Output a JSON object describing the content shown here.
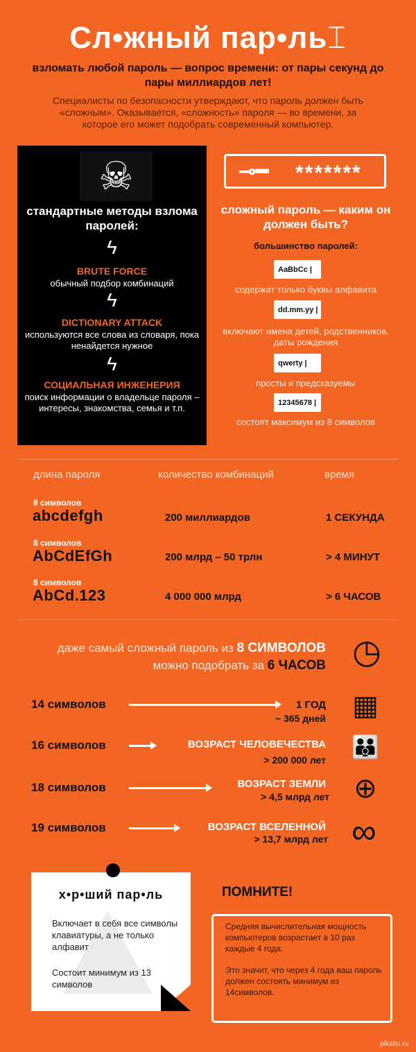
{
  "header": {
    "title": "Сл•жный пар•ль",
    "cursor_icon": "text-cursor-icon",
    "subtitle": "взломать любой пароль — вопрос времени: от пары секунд до пары миллиардов лет!",
    "intro": "Специалисты по безопасности утверждают, что пароль должен быть «сложным». Оказывается, «сложность» пароля — во времени, за которое его может подобрать современный компьютер."
  },
  "methods": {
    "icon": "skull-crossbones-icon",
    "title": "стандартные методы взлома паролей:",
    "items": [
      {
        "icon": "lightning-icon",
        "name": "BRUTE FORCE",
        "desc": "обычный подбор комбинаций"
      },
      {
        "icon": "lightning-icon",
        "name": "DICTIONARY ATTACK",
        "desc": "используются все слова из словаря, пока ненайдется нужное"
      },
      {
        "icon": "lightning-icon",
        "name": "СОЦИАЛЬНАЯ ИНЖЕНЕРИЯ",
        "desc": "поиск информации о владельце пароля – интересы, знакомства, семья и т.п."
      }
    ]
  },
  "complex": {
    "key_icon": "key-icon",
    "masked": "*******",
    "title": "сложный пароль — каким он должен быть?",
    "lead": "большинство паролей:",
    "items": [
      {
        "sample": "AaBbCc |",
        "caption": "содержат только буквы алфавита"
      },
      {
        "sample": "dd.mm.yy |",
        "caption": "включают имена детей, родственников, даты рождения"
      },
      {
        "sample": "qwerty |",
        "caption": "просты и предсказуемы"
      },
      {
        "sample": "12345678 |",
        "caption": "состоят максимум из 8 символов"
      }
    ]
  },
  "table": {
    "headers": [
      "длина пароля",
      "количество комбинаций",
      "время"
    ],
    "rows": [
      {
        "len": "8 символов",
        "example": "abcdefgh",
        "count": "200 миллиардов",
        "time": "1 СЕКУНДА"
      },
      {
        "len": "8 символов",
        "example": "AbCdEfGh",
        "count": "200 млрд – 50 трлн",
        "time": "> 4 МИНУТ"
      },
      {
        "len": "8 символов",
        "example": "AbCd.123",
        "count": "4 000 000 млрд",
        "time": "> 6 ЧАСОВ"
      }
    ]
  },
  "timeline": {
    "lead1": "даже самый сложный пароль из ",
    "lead1b": "8 СИМВОЛОВ",
    "lead2": "можно подобрать за ",
    "lead2b": "6 ЧАСОВ",
    "lead_icon": "clock-icon",
    "rows": [
      {
        "len": "14 символов",
        "result": "1 ГОД",
        "detail": "~ 365 дней",
        "icon": "calendar-icon"
      },
      {
        "len": "16 символов",
        "result": "ВОЗРАСТ ЧЕЛОВЕЧЕСТВА",
        "detail": "> 200 000 лет",
        "icon": "people-icon"
      },
      {
        "len": "18 символов",
        "result": "ВОЗРАСТ ЗЕМЛИ",
        "detail": "> 4,5 млрд лет",
        "icon": "globe-icon"
      },
      {
        "len": "19 символов",
        "result": "ВОЗРАСТ ВСЕЛЕННОЙ",
        "detail": "> 13,7 млрд лет",
        "icon": "infinity-icon"
      }
    ]
  },
  "note": {
    "title": "х•р•ший пар•ль",
    "p1": "Включает в себя все символы клавиатуры, а не только алфавит",
    "p2": "Состоит минимум из 13 символов"
  },
  "remember": {
    "title": "ПОМНИТЕ!",
    "p1": "Средняя вычислительная мощность компьютеров возрастает в 10 раз каждые 4 года.",
    "p2": "Это значит, что через 4 года ваш пароль должен состоять минимум из 14символов."
  },
  "watermark": "pikabu.ru"
}
